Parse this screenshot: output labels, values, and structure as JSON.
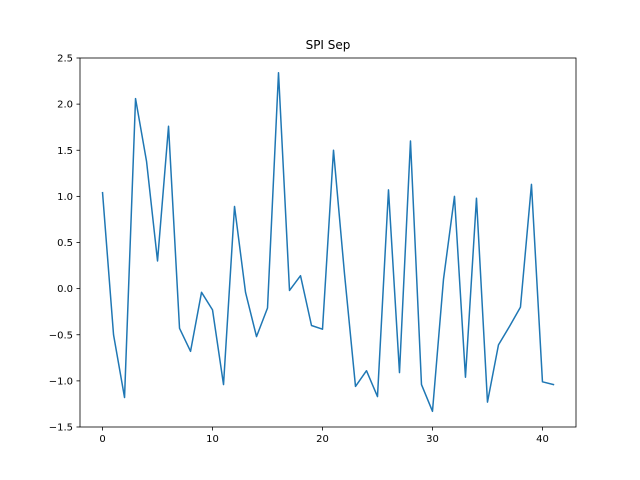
{
  "chart_data": {
    "type": "line",
    "title": "SPI Sep",
    "xlabel": "",
    "ylabel": "",
    "xlim": [
      -2.05,
      43.05
    ],
    "ylim": [
      -1.5,
      2.5
    ],
    "xticks": [
      0,
      10,
      20,
      30,
      40
    ],
    "yticks": [
      -1.5,
      -1.0,
      -0.5,
      0.0,
      0.5,
      1.0,
      1.5,
      2.0,
      2.5
    ],
    "xtick_labels": [
      "0",
      "10",
      "20",
      "30",
      "40"
    ],
    "ytick_labels": [
      "−1.5",
      "−1.0",
      "−0.5",
      "0.0",
      "0.5",
      "1.0",
      "1.5",
      "2.0",
      "2.5"
    ],
    "grid": false,
    "colors": {
      "line": "#1f77b4"
    },
    "series": [
      {
        "x": [
          0,
          1,
          2,
          3,
          4,
          5,
          6,
          7,
          8,
          9,
          10,
          11,
          12,
          13,
          14,
          15,
          16,
          17,
          18,
          19,
          20,
          21,
          22,
          23,
          24,
          25,
          26,
          27,
          28,
          29,
          30,
          31,
          32,
          33,
          34,
          35,
          36,
          37,
          38,
          39,
          40,
          41
        ],
        "values": [
          1.04,
          -0.5,
          -1.18,
          2.06,
          1.38,
          0.3,
          1.76,
          -0.43,
          -0.68,
          -0.04,
          -0.23,
          -1.04,
          0.89,
          -0.04,
          -0.52,
          -0.21,
          2.34,
          -0.02,
          0.14,
          -0.4,
          -0.44,
          1.5,
          0.16,
          -1.06,
          -0.89,
          -1.17,
          1.07,
          -0.91,
          1.6,
          -1.04,
          -1.33,
          0.1,
          1.0,
          -0.96,
          0.98,
          -1.23,
          -0.61,
          -0.41,
          -0.2,
          1.13,
          -1.01,
          -1.04
        ]
      }
    ]
  }
}
